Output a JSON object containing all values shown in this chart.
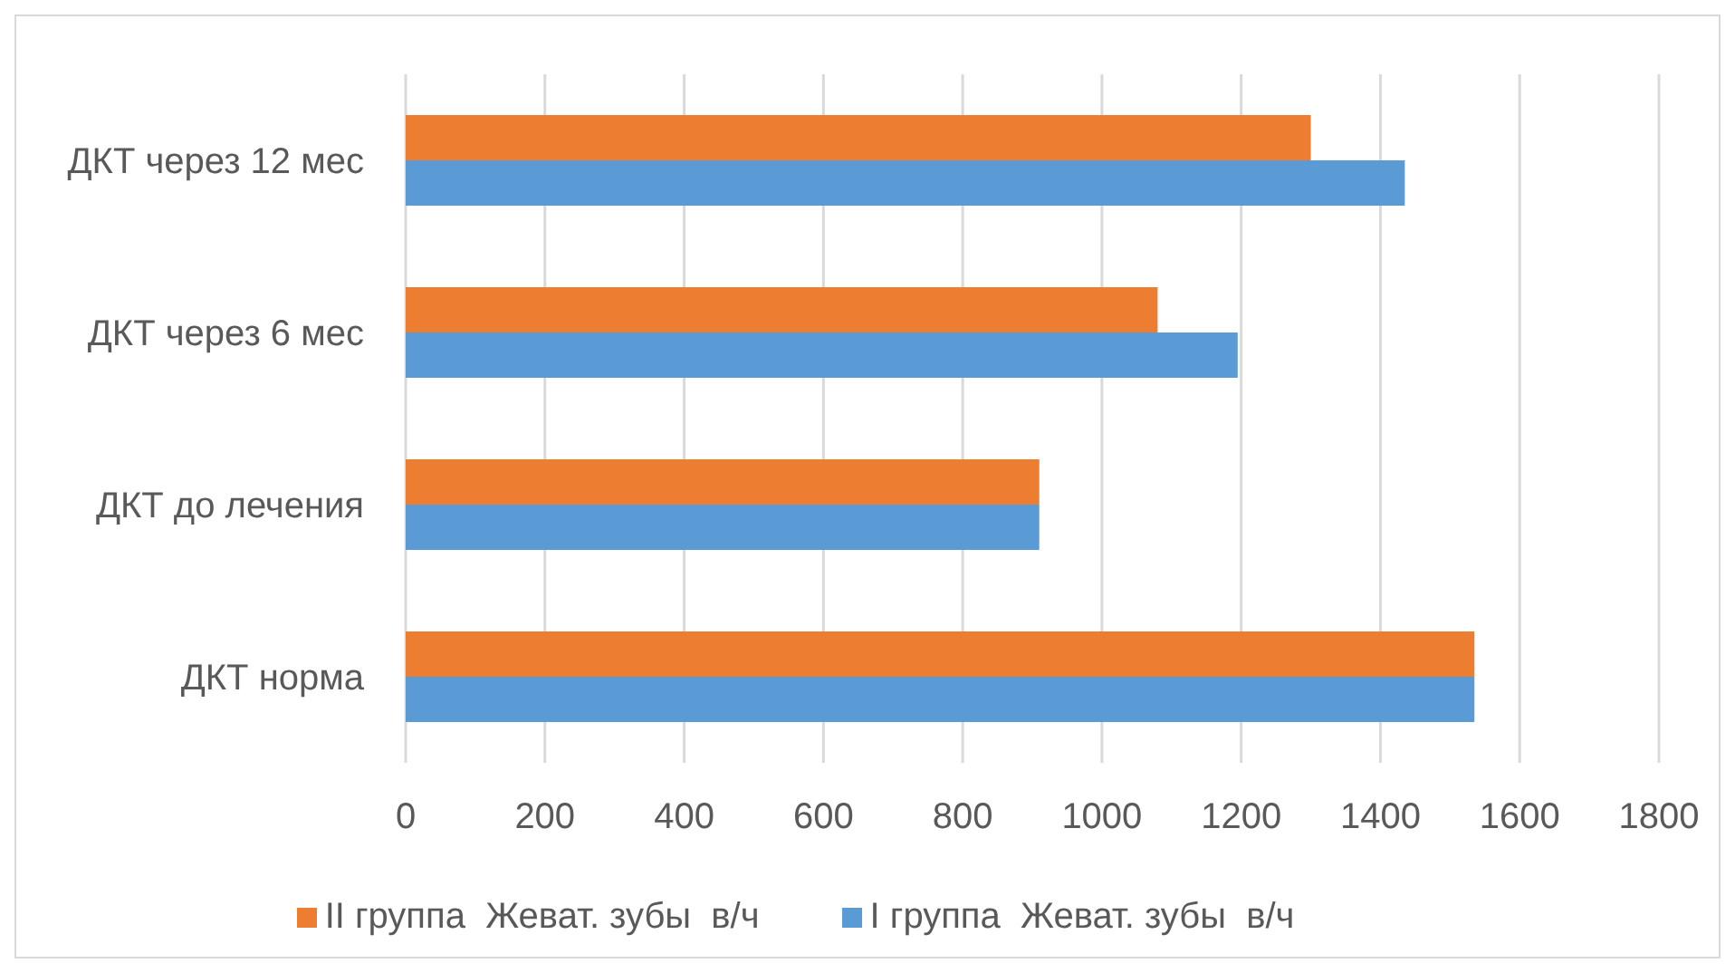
{
  "chart_data": {
    "type": "bar",
    "orientation": "horizontal",
    "categories": [
      "ДКТ через 12 мес",
      "ДКТ через 6 мес",
      "ДКТ до лечения",
      "ДКТ норма"
    ],
    "series": [
      {
        "name": "II группа  Жеват. зубы  в/ч",
        "color": "#ed7d31",
        "values": [
          1300,
          1080,
          910,
          1535
        ]
      },
      {
        "name": "I группа  Жеват. зубы  в/ч",
        "color": "#5b9bd5",
        "values": [
          1435,
          1195,
          910,
          1535
        ]
      }
    ],
    "xlim": [
      0,
      1800
    ],
    "xticks": [
      0,
      200,
      400,
      600,
      800,
      1000,
      1200,
      1400,
      1600,
      1800
    ],
    "grid": "x",
    "legend": "bottom"
  }
}
